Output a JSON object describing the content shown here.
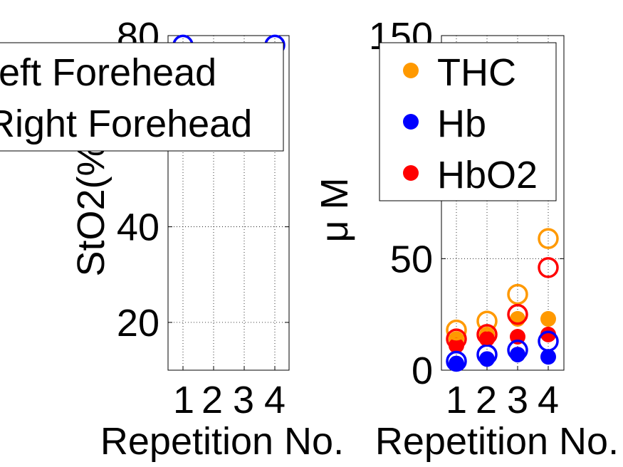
{
  "chart_data": [
    {
      "type": "scatter",
      "xlabel": "Repetition No.",
      "ylabel": "StO2(%)",
      "xticks": [
        "1",
        "2",
        "3",
        "4"
      ],
      "yticks": [
        "20",
        "40",
        "80"
      ],
      "xlim": [
        0.5,
        4.5
      ],
      "ylim": [
        10,
        80
      ],
      "grid": true,
      "legend": {
        "placement": "top-left",
        "entries": [
          "Left Forehead",
          "Right Forehead"
        ],
        "visible_text": [
          "eft Forehead",
          "Right Forehead"
        ]
      },
      "series": [
        {
          "name": "Right Forehead",
          "marker": "open-circle",
          "color": "#0000ff",
          "x": [
            1,
            4
          ],
          "y": [
            78,
            78
          ]
        }
      ]
    },
    {
      "type": "scatter",
      "xlabel": "Repetition No.",
      "ylabel": "μ M",
      "xticks": [
        "1",
        "2",
        "3",
        "4"
      ],
      "yticks": [
        "0",
        "50",
        "150"
      ],
      "xlim": [
        0.5,
        4.5
      ],
      "ylim": [
        0,
        150
      ],
      "grid": true,
      "legend": {
        "placement": "top-right",
        "entries": [
          "THC",
          "Hb",
          "HbO2"
        ]
      },
      "series": [
        {
          "name": "THC",
          "marker": "filled-circle",
          "color": "#ff9900",
          "x": [
            1,
            2,
            3,
            4
          ],
          "y": [
            14,
            16,
            23,
            23
          ]
        },
        {
          "name": "Hb",
          "marker": "filled-circle",
          "color": "#0000ff",
          "x": [
            1,
            2,
            3,
            4
          ],
          "y": [
            3,
            5,
            7,
            6
          ]
        },
        {
          "name": "HbO2",
          "marker": "filled-circle",
          "color": "#ff0000",
          "x": [
            1,
            2,
            3,
            4
          ],
          "y": [
            11,
            14,
            15,
            16
          ]
        },
        {
          "name": "THC",
          "marker": "open-circle",
          "color": "#ff9900",
          "x": [
            1,
            2,
            3,
            4
          ],
          "y": [
            18,
            22,
            34,
            59
          ]
        },
        {
          "name": "Hb",
          "marker": "open-circle",
          "color": "#0000ff",
          "x": [
            1,
            2,
            3,
            4
          ],
          "y": [
            4,
            7,
            9,
            13
          ]
        },
        {
          "name": "HbO2",
          "marker": "open-circle",
          "color": "#ff0000",
          "x": [
            1,
            2,
            3,
            4
          ],
          "y": [
            14,
            16,
            25,
            46
          ]
        }
      ]
    }
  ]
}
